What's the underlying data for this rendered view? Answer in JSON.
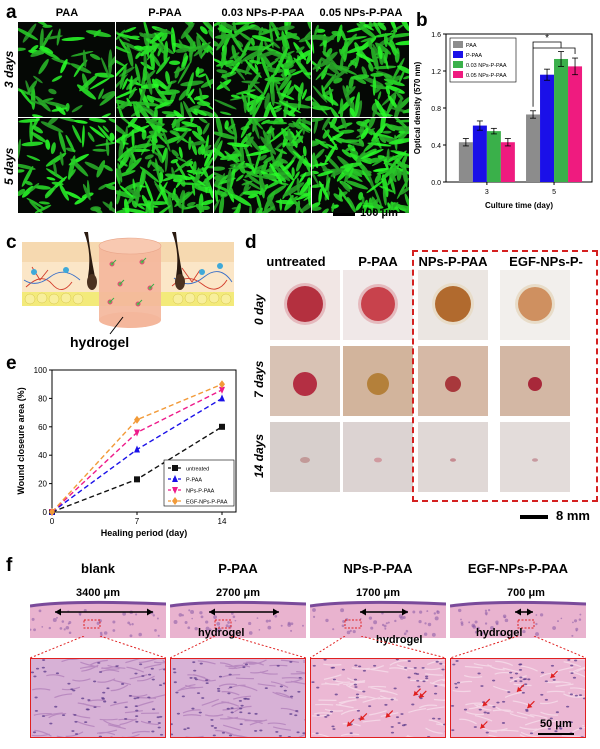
{
  "panel_a": {
    "label": "a",
    "columns": [
      "PAA",
      "P-PAA",
      "0.03 NPs-P-PAA",
      "0.05 NPs-P-PAA"
    ],
    "rows": [
      "3 days",
      "5 days"
    ],
    "scale_bar": "100 μm"
  },
  "panel_b": {
    "label": "b",
    "chart_data": {
      "type": "bar",
      "categories": [
        "3",
        "5"
      ],
      "series": [
        {
          "name": "PAA",
          "color": "#8c8c8c",
          "values": [
            0.43,
            0.73
          ],
          "errors": [
            0.04,
            0.04
          ]
        },
        {
          "name": "P-PAA",
          "color": "#1a10e8",
          "values": [
            0.61,
            1.16
          ],
          "errors": [
            0.05,
            0.06
          ]
        },
        {
          "name": "0.03 NPs-P-PAA",
          "color": "#3ab04a",
          "values": [
            0.55,
            1.33
          ],
          "errors": [
            0.03,
            0.08
          ]
        },
        {
          "name": "0.05 NPs-P-PAA",
          "color": "#ef1b7f",
          "values": [
            0.43,
            1.25
          ],
          "errors": [
            0.04,
            0.09
          ]
        }
      ],
      "xlabel": "Culture time (day)",
      "ylabel": "Optical density (570 nm)",
      "ylim": [
        0.0,
        1.6
      ],
      "yticks": [
        "0.0",
        "0.4",
        "0.8",
        "1.2",
        "1.6"
      ],
      "annotation": "*",
      "legend": "top-left"
    }
  },
  "panel_c": {
    "label": "c",
    "caption": "hydrogel"
  },
  "panel_d": {
    "label": "d",
    "columns": [
      "untreated",
      "P-PAA",
      "NPs-P-PAA",
      "EGF-NPs-P-PAA"
    ],
    "rows": [
      "0 day",
      "7 days",
      "14 days"
    ],
    "scale_bar": "8 mm",
    "highlight_color": "#d42020"
  },
  "panel_e": {
    "label": "e",
    "chart_data": {
      "type": "line",
      "x": [
        0,
        7,
        14
      ],
      "series": [
        {
          "name": "untreated",
          "color": "#111111",
          "marker": "square",
          "values": [
            0,
            23,
            60
          ],
          "errors": [
            0,
            2,
            2
          ]
        },
        {
          "name": "P-PAA",
          "color": "#1a10e8",
          "marker": "triangle-up",
          "values": [
            0,
            44,
            80
          ],
          "errors": [
            0,
            2,
            2
          ]
        },
        {
          "name": "NPs-P-PAA",
          "color": "#ee1b8a",
          "marker": "triangle-down",
          "values": [
            0,
            56,
            86
          ],
          "errors": [
            0,
            2,
            2
          ]
        },
        {
          "name": "EGF-NPs-P-PAA",
          "color": "#f29a38",
          "marker": "diamond",
          "values": [
            0,
            65,
            90
          ],
          "errors": [
            0,
            1,
            1
          ]
        }
      ],
      "xlabel": "Healing period (day)",
      "ylabel": "Wound closeure area (%)",
      "xlim": [
        0,
        14
      ],
      "ylim": [
        0,
        100
      ],
      "xticks": [
        "0",
        "7",
        "14"
      ],
      "yticks": [
        "0",
        "20",
        "40",
        "60",
        "80",
        "100"
      ],
      "legend": "bottom-right"
    }
  },
  "panel_f": {
    "label": "f",
    "columns": [
      "blank",
      "P-PAA",
      "NPs-P-PAA",
      "EGF-NPs-P-PAA"
    ],
    "widths": [
      "3400 μm",
      "2700 μm",
      "1700 μm",
      "700 μm"
    ],
    "hydrogel_label": "hydrogel",
    "scale_bar": "50 μm"
  }
}
